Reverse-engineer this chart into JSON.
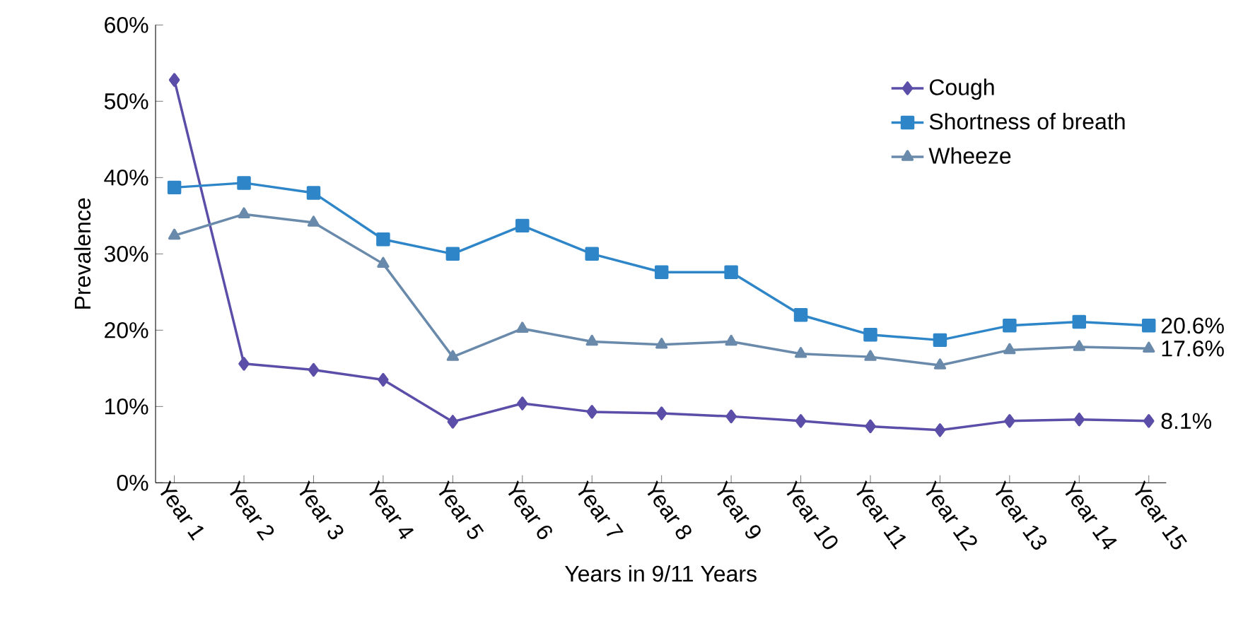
{
  "chart_data": {
    "type": "line",
    "xlabel": "Years in 9/11 Years",
    "ylabel": "Prevalence",
    "categories": [
      "Year 1",
      "Year 2",
      "Year 3",
      "Year 4",
      "Year 5",
      "Year 6",
      "Year 7",
      "Year 8",
      "Year 9",
      "Year 10",
      "Year 11",
      "Year 12",
      "Year 13",
      "Year 14",
      "Year 15"
    ],
    "series": [
      {
        "name": "Cough",
        "color": "#5b4ea8",
        "marker": "diamond",
        "values": [
          52.8,
          15.6,
          14.8,
          13.5,
          8.0,
          10.4,
          9.3,
          9.1,
          8.7,
          8.1,
          7.4,
          6.9,
          8.1,
          8.3,
          8.1
        ],
        "value_labels": [
          null,
          null,
          null,
          null,
          null,
          null,
          null,
          null,
          null,
          null,
          null,
          null,
          null,
          null,
          "8.1%"
        ]
      },
      {
        "name": "Shortness of breath",
        "color": "#2e86c8",
        "marker": "square",
        "values": [
          38.7,
          39.3,
          38.0,
          31.9,
          30.0,
          33.7,
          30.0,
          27.6,
          27.6,
          22.0,
          19.4,
          18.7,
          20.6,
          21.1,
          20.6
        ],
        "value_labels": [
          null,
          null,
          null,
          null,
          null,
          null,
          null,
          null,
          null,
          null,
          null,
          null,
          null,
          null,
          "20.6%"
        ]
      },
      {
        "name": "Wheeze",
        "color": "#6a8aab",
        "marker": "triangle",
        "values": [
          32.4,
          35.2,
          34.1,
          28.7,
          16.5,
          20.2,
          18.5,
          18.1,
          18.5,
          16.9,
          16.5,
          15.4,
          17.4,
          17.8,
          17.6
        ],
        "value_labels": [
          null,
          null,
          null,
          null,
          null,
          null,
          null,
          null,
          null,
          null,
          null,
          null,
          null,
          null,
          "17.6%"
        ]
      }
    ],
    "ylim": [
      0,
      60
    ],
    "yticks": [
      {
        "value": 0,
        "label": "0%"
      },
      {
        "value": 10,
        "label": "10%"
      },
      {
        "value": 20,
        "label": "20%"
      },
      {
        "value": 30,
        "label": "30%"
      },
      {
        "value": 40,
        "label": "40%"
      },
      {
        "value": 50,
        "label": "50%"
      },
      {
        "value": 60,
        "label": "60%"
      }
    ],
    "legend": "top right",
    "line_style": "solid"
  }
}
